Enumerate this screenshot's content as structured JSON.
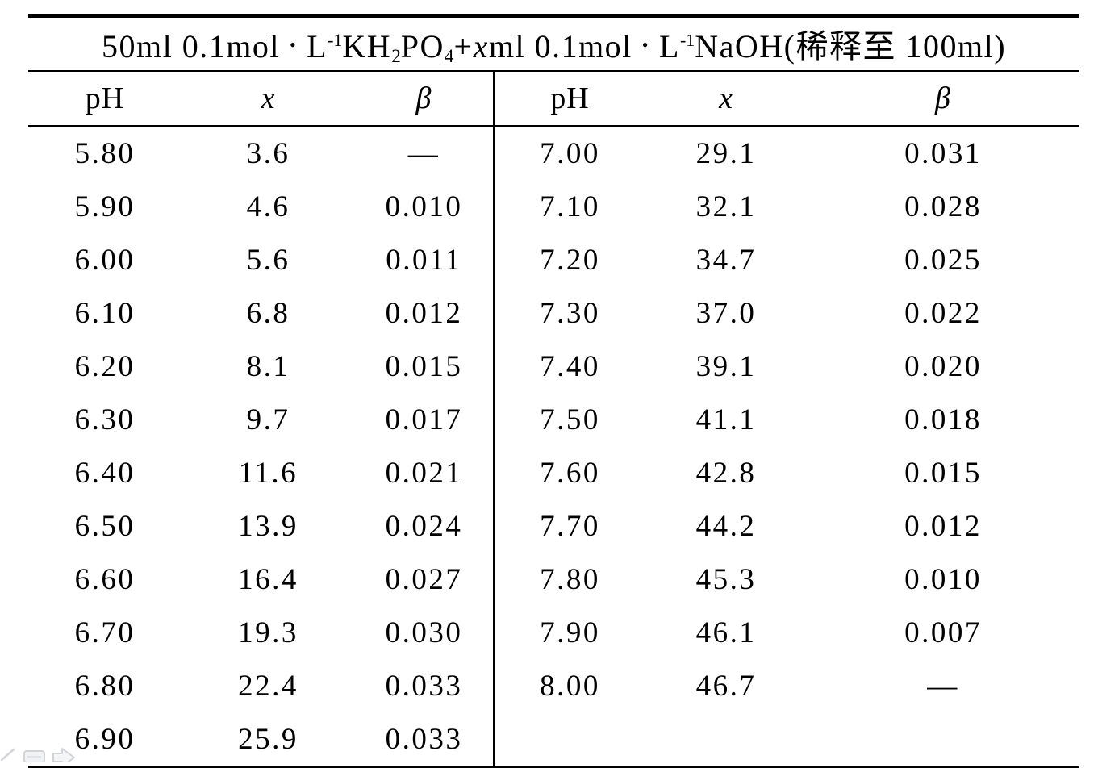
{
  "table": {
    "title_segments": [
      {
        "t": "50ml 0.1mol"
      },
      {
        "t": "•",
        "s": "dot"
      },
      {
        "t": "L"
      },
      {
        "t": "-1",
        "s": "sup"
      },
      {
        "t": "KH"
      },
      {
        "t": "2",
        "s": "sub"
      },
      {
        "t": "PO"
      },
      {
        "t": "4",
        "s": "sub"
      },
      {
        "t": "+"
      },
      {
        "t": "x",
        "s": "i"
      },
      {
        "t": "ml 0.1mol"
      },
      {
        "t": "•",
        "s": "dot"
      },
      {
        "t": "L"
      },
      {
        "t": "-1",
        "s": "sup"
      },
      {
        "t": "NaOH(稀释至 100ml)"
      }
    ],
    "title_plain": "50ml 0.1mol·L⁻¹KH₂PO₄+xml 0.1mol·L⁻¹NaOH(稀释至 100ml)",
    "header": [
      "pH",
      "x",
      "β",
      "pH",
      "x",
      "β"
    ],
    "rows": [
      [
        "5.80",
        "3.6",
        "—",
        "7.00",
        "29.1",
        "0.031"
      ],
      [
        "5.90",
        "4.6",
        "0.010",
        "7.10",
        "32.1",
        "0.028"
      ],
      [
        "6.00",
        "5.6",
        "0.011",
        "7.20",
        "34.7",
        "0.025"
      ],
      [
        "6.10",
        "6.8",
        "0.012",
        "7.30",
        "37.0",
        "0.022"
      ],
      [
        "6.20",
        "8.1",
        "0.015",
        "7.40",
        "39.1",
        "0.020"
      ],
      [
        "6.30",
        "9.7",
        "0.017",
        "7.50",
        "41.1",
        "0.018"
      ],
      [
        "6.40",
        "11.6",
        "0.021",
        "7.60",
        "42.8",
        "0.015"
      ],
      [
        "6.50",
        "13.9",
        "0.024",
        "7.70",
        "44.2",
        "0.012"
      ],
      [
        "6.60",
        "16.4",
        "0.027",
        "7.80",
        "45.3",
        "0.010"
      ],
      [
        "6.70",
        "19.3",
        "0.030",
        "7.90",
        "46.1",
        "0.007"
      ],
      [
        "6.80",
        "22.4",
        "0.033",
        "8.00",
        "46.7",
        "—"
      ],
      [
        "6.90",
        "25.9",
        "0.033",
        "",
        "",
        ""
      ]
    ]
  },
  "colors": {
    "text": "#000000",
    "background": "#ffffff",
    "rule": "#000000",
    "artifact_gray": "#d2d4d8"
  }
}
